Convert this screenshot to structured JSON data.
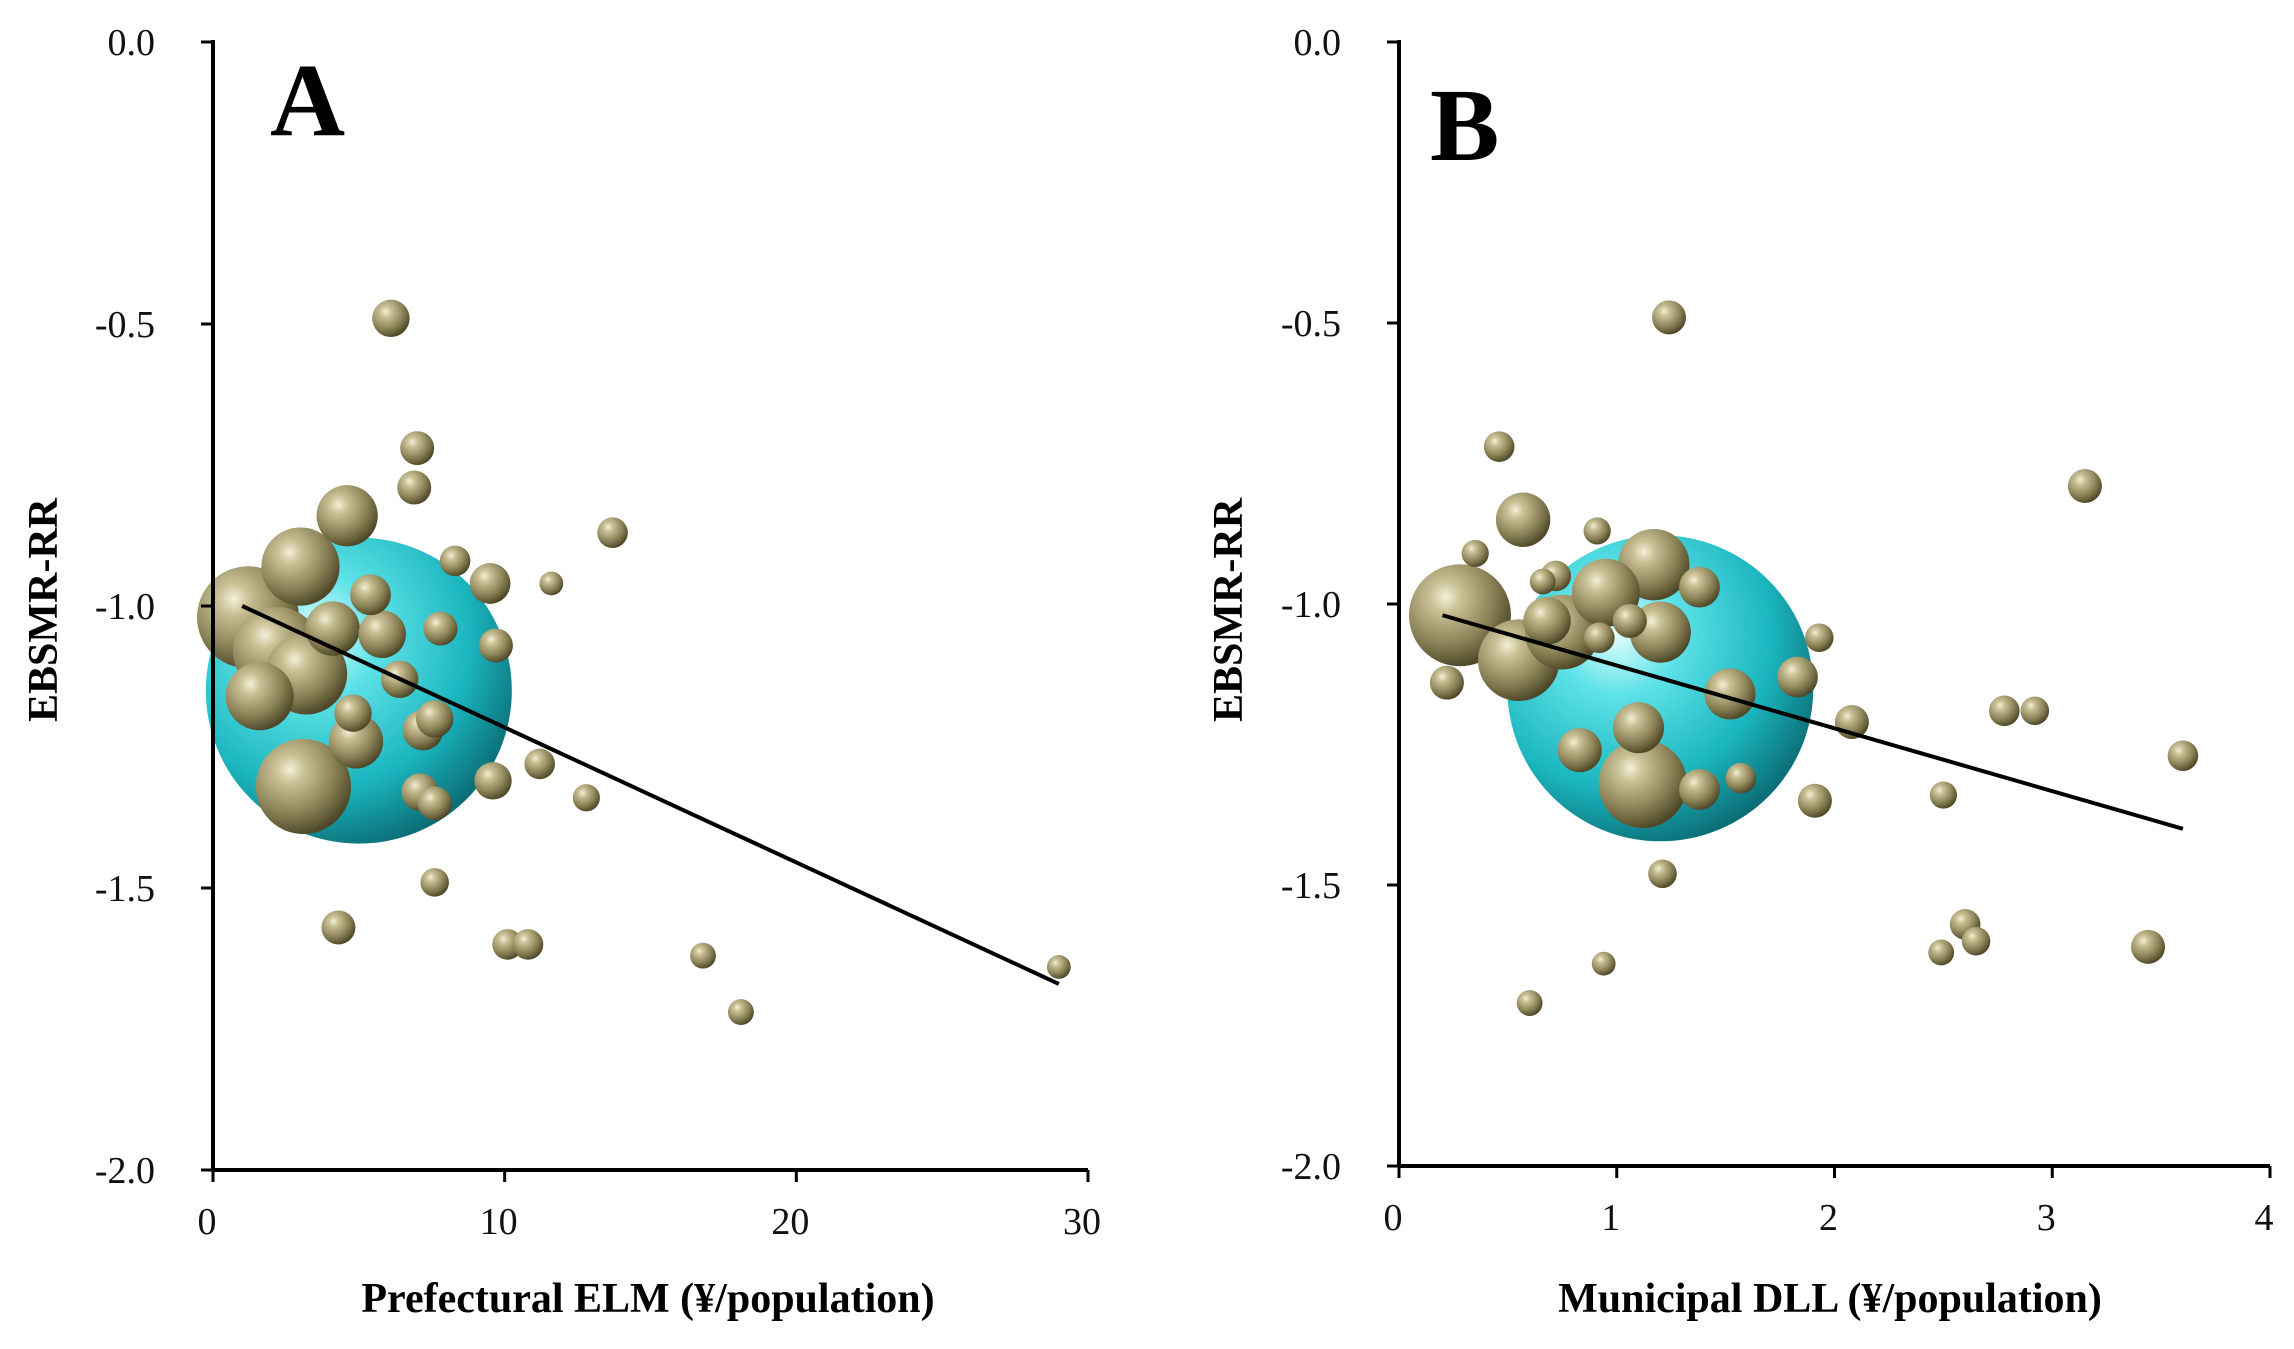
{
  "chart_data": [
    {
      "type": "scatter",
      "panel_label": "A",
      "xlabel": "Prefectural ELM (¥/population)",
      "ylabel": "EBSMR-RR",
      "xlim": [
        0,
        30
      ],
      "ylim": [
        -2.0,
        0.0
      ],
      "xticks": [
        0,
        10,
        20,
        30
      ],
      "yticks": [
        0.0,
        -0.5,
        -1.0,
        -1.5,
        -2.0
      ],
      "xtick_labels": [
        "0",
        "10",
        "20",
        "30"
      ],
      "ytick_labels": [
        "0.0",
        "-0.5",
        "-1.0",
        "-1.5",
        "-2.0"
      ],
      "marker_color": "#8c8458",
      "highlight_color": "#22c4cc",
      "line_color": "#000000",
      "trendline": {
        "x": [
          1.0,
          29.0
        ],
        "y": [
          -1.0,
          -1.67
        ]
      },
      "highlight": {
        "x": 5.0,
        "y": -1.15,
        "size": 4.5
      },
      "points": [
        {
          "x": 1.2,
          "y": -1.02,
          "size": 1.5
        },
        {
          "x": 2.2,
          "y": -1.08,
          "size": 1.3
        },
        {
          "x": 3.2,
          "y": -1.12,
          "size": 1.2
        },
        {
          "x": 1.6,
          "y": -1.16,
          "size": 1.0
        },
        {
          "x": 3.0,
          "y": -0.93,
          "size": 1.15
        },
        {
          "x": 3.1,
          "y": -1.32,
          "size": 1.4
        },
        {
          "x": 4.6,
          "y": -0.84,
          "size": 0.9
        },
        {
          "x": 4.1,
          "y": -1.04,
          "size": 0.8
        },
        {
          "x": 4.9,
          "y": -1.24,
          "size": 0.8
        },
        {
          "x": 5.4,
          "y": -0.98,
          "size": 0.6
        },
        {
          "x": 5.8,
          "y": -1.05,
          "size": 0.7
        },
        {
          "x": 4.8,
          "y": -1.19,
          "size": 0.55
        },
        {
          "x": 6.4,
          "y": -1.13,
          "size": 0.55
        },
        {
          "x": 6.1,
          "y": -0.49,
          "size": 0.55
        },
        {
          "x": 7.0,
          "y": -0.72,
          "size": 0.5
        },
        {
          "x": 6.9,
          "y": -0.79,
          "size": 0.5
        },
        {
          "x": 7.2,
          "y": -1.22,
          "size": 0.6
        },
        {
          "x": 7.6,
          "y": -1.2,
          "size": 0.55
        },
        {
          "x": 7.1,
          "y": -1.33,
          "size": 0.55
        },
        {
          "x": 7.6,
          "y": -1.35,
          "size": 0.5
        },
        {
          "x": 7.8,
          "y": -1.04,
          "size": 0.5
        },
        {
          "x": 8.3,
          "y": -0.92,
          "size": 0.45
        },
        {
          "x": 9.5,
          "y": -0.96,
          "size": 0.6
        },
        {
          "x": 9.7,
          "y": -1.07,
          "size": 0.5
        },
        {
          "x": 9.6,
          "y": -1.31,
          "size": 0.55
        },
        {
          "x": 11.2,
          "y": -1.28,
          "size": 0.45
        },
        {
          "x": 11.6,
          "y": -0.96,
          "size": 0.35
        },
        {
          "x": 12.8,
          "y": -1.34,
          "size": 0.4
        },
        {
          "x": 13.7,
          "y": -0.87,
          "size": 0.45
        },
        {
          "x": 7.6,
          "y": -1.49,
          "size": 0.42
        },
        {
          "x": 4.3,
          "y": -1.57,
          "size": 0.5
        },
        {
          "x": 10.1,
          "y": -1.6,
          "size": 0.45
        },
        {
          "x": 10.8,
          "y": -1.6,
          "size": 0.45
        },
        {
          "x": 16.8,
          "y": -1.62,
          "size": 0.38
        },
        {
          "x": 18.1,
          "y": -1.72,
          "size": 0.38
        },
        {
          "x": 29.0,
          "y": -1.64,
          "size": 0.35
        }
      ]
    },
    {
      "type": "scatter",
      "panel_label": "B",
      "xlabel": "Municipal DLL (¥/population)",
      "ylabel": "EBSMR-RR",
      "xlim": [
        0,
        4
      ],
      "ylim": [
        -2.0,
        0.0
      ],
      "xticks": [
        0,
        1,
        2,
        3,
        4
      ],
      "yticks": [
        0.0,
        -0.5,
        -1.0,
        -1.5,
        -2.0
      ],
      "xtick_labels": [
        "0",
        "1",
        "2",
        "3",
        "4"
      ],
      "ytick_labels": [
        "0.0",
        "-0.5",
        "-1.0",
        "-1.5",
        "-2.0"
      ],
      "marker_color": "#8c8458",
      "highlight_color": "#22c4cc",
      "line_color": "#000000",
      "trendline": {
        "x": [
          0.2,
          3.6
        ],
        "y": [
          -1.02,
          -1.4
        ]
      },
      "highlight": {
        "x": 1.2,
        "y": -1.15,
        "size": 4.5
      },
      "points": [
        {
          "x": 0.28,
          "y": -1.02,
          "size": 1.5
        },
        {
          "x": 0.55,
          "y": -1.1,
          "size": 1.2
        },
        {
          "x": 0.75,
          "y": -1.05,
          "size": 1.1
        },
        {
          "x": 0.95,
          "y": -0.98,
          "size": 1.0
        },
        {
          "x": 1.17,
          "y": -0.93,
          "size": 1.05
        },
        {
          "x": 1.2,
          "y": -1.05,
          "size": 0.9
        },
        {
          "x": 1.12,
          "y": -1.32,
          "size": 1.3
        },
        {
          "x": 0.57,
          "y": -0.85,
          "size": 0.8
        },
        {
          "x": 0.68,
          "y": -1.03,
          "size": 0.7
        },
        {
          "x": 1.1,
          "y": -1.22,
          "size": 0.75
        },
        {
          "x": 0.83,
          "y": -1.26,
          "size": 0.65
        },
        {
          "x": 1.52,
          "y": -1.16,
          "size": 0.75
        },
        {
          "x": 1.38,
          "y": -0.97,
          "size": 0.6
        },
        {
          "x": 1.06,
          "y": -1.03,
          "size": 0.5
        },
        {
          "x": 0.92,
          "y": -1.06,
          "size": 0.45
        },
        {
          "x": 1.24,
          "y": -0.49,
          "size": 0.5
        },
        {
          "x": 0.46,
          "y": -0.72,
          "size": 0.45
        },
        {
          "x": 0.22,
          "y": -1.14,
          "size": 0.5
        },
        {
          "x": 0.35,
          "y": -0.91,
          "size": 0.4
        },
        {
          "x": 0.72,
          "y": -0.95,
          "size": 0.45
        },
        {
          "x": 0.66,
          "y": -0.96,
          "size": 0.38
        },
        {
          "x": 0.91,
          "y": -0.87,
          "size": 0.4
        },
        {
          "x": 1.38,
          "y": -1.33,
          "size": 0.6
        },
        {
          "x": 1.57,
          "y": -1.31,
          "size": 0.45
        },
        {
          "x": 1.83,
          "y": -1.13,
          "size": 0.6
        },
        {
          "x": 1.93,
          "y": -1.06,
          "size": 0.42
        },
        {
          "x": 1.91,
          "y": -1.35,
          "size": 0.5
        },
        {
          "x": 2.08,
          "y": -1.21,
          "size": 0.5
        },
        {
          "x": 1.21,
          "y": -1.48,
          "size": 0.42
        },
        {
          "x": 0.94,
          "y": -1.64,
          "size": 0.35
        },
        {
          "x": 0.6,
          "y": -1.71,
          "size": 0.38
        },
        {
          "x": 2.5,
          "y": -1.34,
          "size": 0.4
        },
        {
          "x": 2.6,
          "y": -1.57,
          "size": 0.45
        },
        {
          "x": 2.65,
          "y": -1.6,
          "size": 0.42
        },
        {
          "x": 2.49,
          "y": -1.62,
          "size": 0.38
        },
        {
          "x": 2.78,
          "y": -1.19,
          "size": 0.45
        },
        {
          "x": 2.92,
          "y": -1.19,
          "size": 0.42
        },
        {
          "x": 3.15,
          "y": -0.79,
          "size": 0.5
        },
        {
          "x": 3.44,
          "y": -1.61,
          "size": 0.5
        },
        {
          "x": 3.6,
          "y": -1.27,
          "size": 0.45
        }
      ]
    }
  ]
}
